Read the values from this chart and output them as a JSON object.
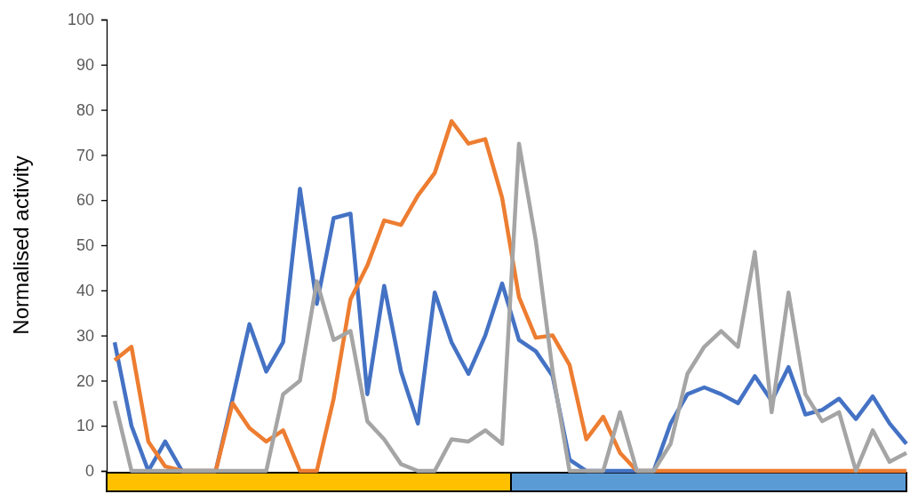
{
  "chart_data": {
    "type": "line",
    "ylabel": "Normalised activity",
    "categories": [
      null,
      null,
      null,
      null,
      null,
      null,
      null,
      null,
      null,
      null,
      null,
      null,
      null,
      null,
      null,
      null,
      null,
      null,
      null,
      null,
      null,
      null,
      null,
      null,
      null,
      null,
      null,
      null,
      null,
      null,
      null,
      null,
      null,
      null,
      null,
      null,
      null,
      null,
      null,
      null,
      null,
      null,
      null,
      null,
      null,
      null,
      null,
      null
    ],
    "ylim": [
      0,
      100
    ],
    "yticks": [
      0,
      10,
      20,
      30,
      40,
      50,
      60,
      70,
      80,
      90,
      100
    ],
    "grid": false,
    "marker": "none",
    "line_style": "solid",
    "tick_labels": "y",
    "series": [
      {
        "color": "#4472c4",
        "values": [
          28.5,
          10,
          0,
          6.5,
          0,
          0,
          0,
          16,
          32.5,
          22,
          28.5,
          62.5,
          37,
          56,
          57,
          17,
          41,
          22,
          10.5,
          39.5,
          28.5,
          21.5,
          30,
          41.5,
          29,
          26.5,
          21,
          2.5,
          0,
          0,
          0,
          0,
          0,
          10.5,
          17,
          18.5,
          17,
          15,
          21,
          15.5,
          23,
          12.5,
          13.5,
          16,
          11.5,
          16.5,
          10.5,
          6
        ]
      },
      {
        "color": "#ed7d31",
        "values": [
          24.5,
          27.5,
          6.5,
          1,
          0,
          0,
          0,
          15,
          9.5,
          6.5,
          9,
          0,
          0,
          16,
          38,
          45.5,
          55.5,
          54.5,
          61,
          66,
          77.5,
          72.5,
          73.5,
          60.5,
          38.5,
          29.5,
          30,
          23.5,
          7,
          12,
          4,
          0,
          0,
          0,
          0,
          0,
          0,
          0,
          0,
          0,
          0,
          0,
          0,
          0,
          0,
          0,
          0,
          0
        ]
      },
      {
        "color": "#a5a5a5",
        "values": [
          15.5,
          0,
          0,
          0,
          0,
          0,
          0,
          0,
          0,
          0,
          17,
          20,
          42,
          29,
          31,
          11,
          7,
          1.5,
          0,
          0,
          7,
          6.5,
          9,
          6,
          72.5,
          51,
          22,
          0,
          0,
          0,
          13,
          0,
          0,
          6,
          21.5,
          27.5,
          31,
          27.5,
          48.5,
          13,
          39.5,
          17,
          11,
          13,
          0,
          9,
          2,
          4
        ]
      }
    ]
  }
}
